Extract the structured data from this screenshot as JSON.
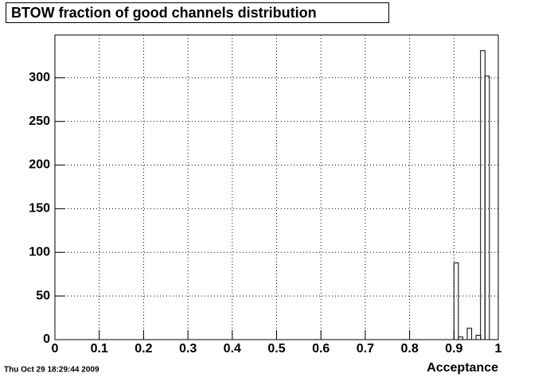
{
  "chart_data": {
    "type": "histogram",
    "title": "BTOW fraction of good channels distribution",
    "xlabel": "Acceptance",
    "timestamp": "Thu Oct 29 18:29:44 2009",
    "bins": [
      0,
      0.01,
      0.02,
      0.03,
      0.04,
      0.05,
      0.06,
      0.07,
      0.08,
      0.09,
      0.1,
      0.11,
      0.12,
      0.13,
      0.14,
      0.15,
      0.16,
      0.17,
      0.18,
      0.19,
      0.2,
      0.21,
      0.22,
      0.23,
      0.24,
      0.25,
      0.26,
      0.27,
      0.28,
      0.29,
      0.3,
      0.31,
      0.32,
      0.33,
      0.34,
      0.35,
      0.36,
      0.37,
      0.38,
      0.39,
      0.4,
      0.41,
      0.42,
      0.43,
      0.44,
      0.45,
      0.46,
      0.47,
      0.48,
      0.49,
      0.5,
      0.51,
      0.52,
      0.53,
      0.54,
      0.55,
      0.56,
      0.57,
      0.58,
      0.59,
      0.6,
      0.61,
      0.62,
      0.63,
      0.64,
      0.65,
      0.66,
      0.67,
      0.68,
      0.69,
      0.7,
      0.71,
      0.72,
      0.73,
      0.74,
      0.75,
      0.76,
      0.77,
      0.78,
      0.79,
      0.8,
      0.81,
      0.82,
      0.83,
      0.84,
      0.85,
      0.86,
      0.87,
      0.88,
      0.89,
      0.9,
      0.91,
      0.92,
      0.93,
      0.94,
      0.95,
      0.96,
      0.97,
      0.98,
      0.99,
      1
    ],
    "values": [
      0,
      0,
      0,
      0,
      0,
      0,
      0,
      0,
      0,
      0,
      0,
      0,
      0,
      0,
      0,
      0,
      0,
      0,
      0,
      0,
      0,
      0,
      0,
      0,
      0,
      0,
      0,
      0,
      0,
      0,
      0,
      0,
      0,
      0,
      0,
      0,
      0,
      0,
      0,
      0,
      0,
      0,
      0,
      0,
      0,
      0,
      0,
      0,
      0,
      0,
      0,
      0,
      0,
      0,
      0,
      0,
      0,
      0,
      0,
      0,
      0,
      0,
      0,
      0,
      0,
      0,
      0,
      0,
      0,
      0,
      0,
      0,
      0,
      0,
      0,
      0,
      0,
      0,
      0,
      0,
      0,
      0,
      0,
      0,
      0,
      0,
      0,
      0,
      0,
      0,
      88,
      3,
      0,
      13,
      0,
      5,
      331,
      302,
      0,
      0
    ],
    "color": "#000000",
    "xlim": [
      0,
      1
    ],
    "ylim": [
      0,
      349
    ],
    "xticks": [
      0,
      0.1,
      0.2,
      0.3,
      0.4,
      0.5,
      0.6,
      0.7,
      0.8,
      0.9,
      1
    ],
    "yticks": [
      0,
      50,
      100,
      150,
      200,
      250,
      300
    ],
    "grid": true
  }
}
